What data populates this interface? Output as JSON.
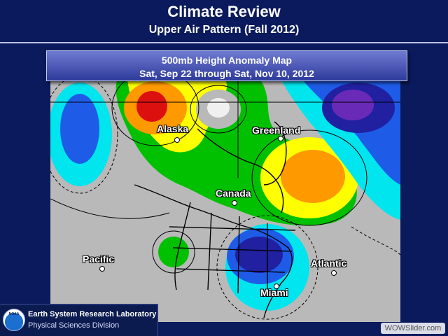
{
  "slide": {
    "title": "Climate Review",
    "subtitle": "Upper Air Pattern (Fall 2012)"
  },
  "map": {
    "title": "500mb Height Anomaly Map",
    "date_range": "Sat, Sep 22 through Sat, Nov 10, 2012",
    "places": [
      {
        "name": "Alaska"
      },
      {
        "name": "Greenland"
      },
      {
        "name": "Canada"
      },
      {
        "name": "Pacific"
      },
      {
        "name": "Atlantic"
      },
      {
        "name": "Miami"
      }
    ],
    "colors": {
      "neutral": "#b9b9b9",
      "positive_1": "#00c000",
      "positive_2": "#ffff00",
      "positive_3": "#ff9900",
      "positive_4": "#dd1010",
      "negative_1": "#00e5ee",
      "negative_2": "#1e5ce8",
      "negative_3": "#2020a0",
      "negative_4": "#6a2ab8"
    }
  },
  "footer": {
    "logo_text": "NOAA",
    "lab_name": "Earth System Research Laboratory",
    "division": "Physical Sciences Division",
    "watermark": "WOWSlider.com"
  }
}
